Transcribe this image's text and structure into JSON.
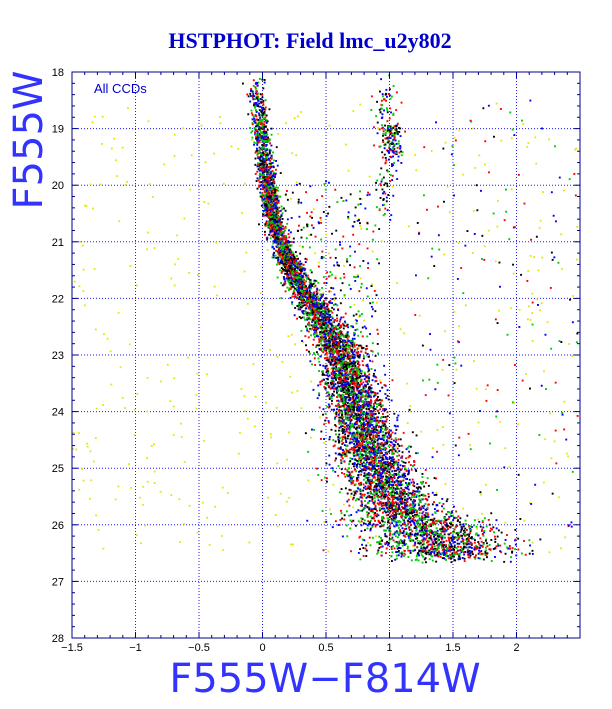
{
  "chart_data": {
    "type": "scatter",
    "title": "HSTPHOT: Field lmc_u2y802",
    "xlabel": "F555W−F814W",
    "ylabel": "F555W",
    "annotation": "All CCDs",
    "xlim": [
      -1.5,
      2.5
    ],
    "ylim": [
      28,
      18
    ],
    "y_inverted": true,
    "grid": true,
    "x_ticks": [
      -1.5,
      -1,
      -0.5,
      0,
      0.5,
      1,
      1.5,
      2
    ],
    "x_tick_labels": [
      "−1.5",
      "−1",
      "−0.5",
      "0",
      "0.5",
      "1",
      "1.5",
      "2"
    ],
    "y_ticks": [
      18,
      19,
      20,
      21,
      22,
      23,
      24,
      25,
      26,
      27,
      28
    ],
    "y_tick_labels": [
      "18",
      "19",
      "20",
      "21",
      "22",
      "23",
      "24",
      "25",
      "26",
      "27",
      "28"
    ],
    "colors": {
      "title": "#0000cc",
      "axis_label": "#3333ff",
      "axes": "#00008b",
      "grid": "#1a1aff",
      "annotation": "#0000cc",
      "background": "#ffffff"
    },
    "series_colors": [
      "#000000",
      "#ff0000",
      "#00cc00",
      "#0000ff"
    ],
    "field_star_color": "#e6e600",
    "features": {
      "main_sequence_turnoff": [
        [
          -0.05,
          18.1
        ],
        [
          -0.03,
          18.6
        ],
        [
          0.0,
          19.2
        ],
        [
          0.03,
          19.8
        ],
        [
          0.07,
          20.4
        ],
        [
          0.14,
          21.0
        ],
        [
          0.25,
          21.6
        ],
        [
          0.42,
          22.2
        ],
        [
          0.58,
          22.8
        ],
        [
          0.68,
          23.4
        ],
        [
          0.76,
          24.0
        ],
        [
          0.83,
          24.6
        ],
        [
          0.92,
          25.1
        ],
        [
          1.05,
          25.6
        ],
        [
          1.22,
          26.0
        ],
        [
          1.42,
          26.3
        ]
      ],
      "red_clump": {
        "color": [
          1.02,
          1.0
        ],
        "mag": [
          18.9,
          19.5
        ]
      },
      "red_giant_branch": [
        [
          0.95,
          18.3
        ],
        [
          1.0,
          19.3
        ],
        [
          0.96,
          20.5
        ]
      ],
      "field_population": {
        "color_range": [
          -1.5,
          2.5
        ],
        "mag_range": [
          18.5,
          26.5
        ]
      }
    }
  }
}
